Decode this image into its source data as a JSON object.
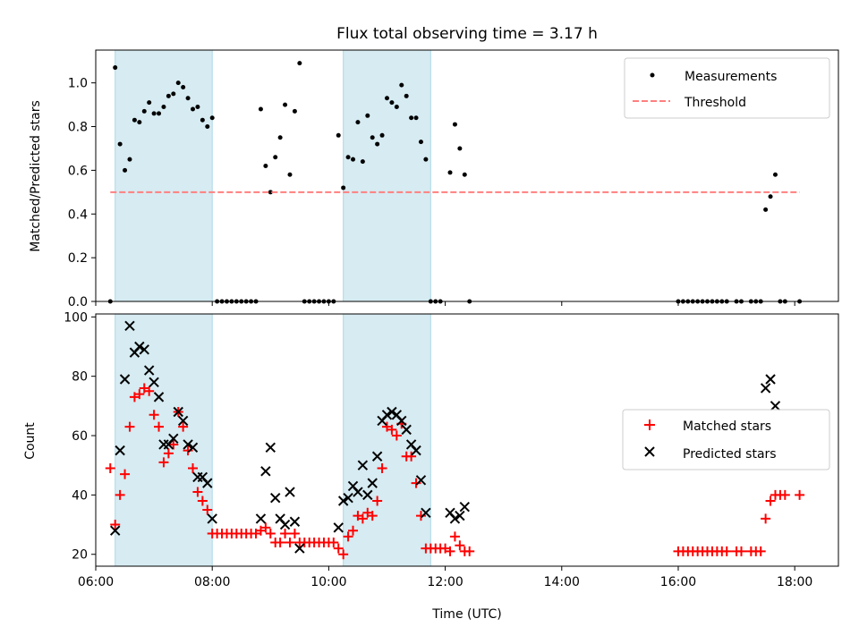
{
  "chart_data": [
    {
      "type": "scatter",
      "title": "Flux total observing time = 3.17 h",
      "xlabel": "",
      "ylabel": "Matched/Predicted stars",
      "xlim": [
        "06:00",
        "18:45"
      ],
      "ylim": [
        0,
        1.15
      ],
      "yticks": [
        "0.0",
        "0.2",
        "0.4",
        "0.6",
        "0.8",
        "1.0"
      ],
      "shaded_intervals": [
        [
          "06:20",
          "08:00"
        ],
        [
          "10:15",
          "11:45"
        ]
      ],
      "legend": "upper right",
      "series": [
        {
          "name": "Measurements",
          "marker": "dot",
          "color": "#000000",
          "points": [
            [
              "06:15",
              0.0
            ],
            [
              "06:20",
              1.07
            ],
            [
              "06:25",
              0.72
            ],
            [
              "06:30",
              0.6
            ],
            [
              "06:35",
              0.65
            ],
            [
              "06:40",
              0.83
            ],
            [
              "06:45",
              0.82
            ],
            [
              "06:50",
              0.87
            ],
            [
              "06:55",
              0.91
            ],
            [
              "07:00",
              0.86
            ],
            [
              "07:05",
              0.86
            ],
            [
              "07:10",
              0.89
            ],
            [
              "07:15",
              0.94
            ],
            [
              "07:20",
              0.95
            ],
            [
              "07:25",
              1.0
            ],
            [
              "07:30",
              0.98
            ],
            [
              "07:35",
              0.93
            ],
            [
              "07:40",
              0.88
            ],
            [
              "07:45",
              0.89
            ],
            [
              "07:50",
              0.83
            ],
            [
              "07:55",
              0.8
            ],
            [
              "08:00",
              0.84
            ],
            [
              "08:05",
              0.0
            ],
            [
              "08:10",
              0.0
            ],
            [
              "08:15",
              0.0
            ],
            [
              "08:20",
              0.0
            ],
            [
              "08:25",
              0.0
            ],
            [
              "08:30",
              0.0
            ],
            [
              "08:35",
              0.0
            ],
            [
              "08:40",
              0.0
            ],
            [
              "08:45",
              0.0
            ],
            [
              "08:50",
              0.88
            ],
            [
              "08:55",
              0.62
            ],
            [
              "09:00",
              0.5
            ],
            [
              "09:05",
              0.66
            ],
            [
              "09:10",
              0.75
            ],
            [
              "09:15",
              0.9
            ],
            [
              "09:20",
              0.58
            ],
            [
              "09:25",
              0.87
            ],
            [
              "09:30",
              1.09
            ],
            [
              "09:35",
              0.0
            ],
            [
              "09:40",
              0.0
            ],
            [
              "09:45",
              0.0
            ],
            [
              "09:50",
              0.0
            ],
            [
              "09:55",
              0.0
            ],
            [
              "10:00",
              0.0
            ],
            [
              "10:05",
              0.0
            ],
            [
              "10:10",
              0.76
            ],
            [
              "10:15",
              0.52
            ],
            [
              "10:20",
              0.66
            ],
            [
              "10:25",
              0.65
            ],
            [
              "10:30",
              0.82
            ],
            [
              "10:35",
              0.64
            ],
            [
              "10:40",
              0.85
            ],
            [
              "10:45",
              0.75
            ],
            [
              "10:50",
              0.72
            ],
            [
              "10:55",
              0.76
            ],
            [
              "11:00",
              0.93
            ],
            [
              "11:05",
              0.91
            ],
            [
              "11:10",
              0.89
            ],
            [
              "11:15",
              0.99
            ],
            [
              "11:20",
              0.94
            ],
            [
              "11:25",
              0.84
            ],
            [
              "11:30",
              0.84
            ],
            [
              "11:35",
              0.73
            ],
            [
              "11:40",
              0.65
            ],
            [
              "11:45",
              0.0
            ],
            [
              "11:50",
              0.0
            ],
            [
              "11:55",
              0.0
            ],
            [
              "12:05",
              0.59
            ],
            [
              "12:10",
              0.81
            ],
            [
              "12:15",
              0.7
            ],
            [
              "12:20",
              0.58
            ],
            [
              "12:25",
              0.0
            ],
            [
              "16:00",
              0.0
            ],
            [
              "16:05",
              0.0
            ],
            [
              "16:10",
              0.0
            ],
            [
              "16:15",
              0.0
            ],
            [
              "16:20",
              0.0
            ],
            [
              "16:25",
              0.0
            ],
            [
              "16:30",
              0.0
            ],
            [
              "16:35",
              0.0
            ],
            [
              "16:40",
              0.0
            ],
            [
              "16:45",
              0.0
            ],
            [
              "16:50",
              0.0
            ],
            [
              "17:00",
              0.0
            ],
            [
              "17:05",
              0.0
            ],
            [
              "17:15",
              0.0
            ],
            [
              "17:20",
              0.0
            ],
            [
              "17:25",
              0.0
            ],
            [
              "17:30",
              0.42
            ],
            [
              "17:35",
              0.48
            ],
            [
              "17:40",
              0.58
            ],
            [
              "17:45",
              0.0
            ],
            [
              "17:50",
              0.0
            ],
            [
              "18:05",
              0.0
            ]
          ]
        },
        {
          "name": "Threshold",
          "marker": "dashed-line",
          "color": "#ff7f7f",
          "points": [
            [
              "06:15",
              0.5
            ],
            [
              "18:05",
              0.5
            ]
          ]
        }
      ]
    },
    {
      "type": "scatter",
      "title": "",
      "xlabel": "Time (UTC)",
      "ylabel": "Count",
      "xlim": [
        "06:00",
        "18:45"
      ],
      "ylim": [
        16,
        101
      ],
      "xticks": [
        "06:00",
        "08:00",
        "10:00",
        "12:00",
        "14:00",
        "16:00",
        "18:00"
      ],
      "yticks": [
        "20",
        "40",
        "60",
        "80",
        "100"
      ],
      "shaded_intervals": [
        [
          "06:20",
          "08:00"
        ],
        [
          "10:15",
          "11:45"
        ]
      ],
      "legend": "center right",
      "series": [
        {
          "name": "Matched stars",
          "marker": "plus",
          "color": "#ff0000",
          "points": [
            [
              "06:15",
              49
            ],
            [
              "06:20",
              30
            ],
            [
              "06:25",
              40
            ],
            [
              "06:30",
              47
            ],
            [
              "06:35",
              63
            ],
            [
              "06:40",
              73
            ],
            [
              "06:45",
              74
            ],
            [
              "06:50",
              76
            ],
            [
              "06:55",
              75
            ],
            [
              "07:00",
              67
            ],
            [
              "07:05",
              63
            ],
            [
              "07:10",
              51
            ],
            [
              "07:15",
              54
            ],
            [
              "07:20",
              57
            ],
            [
              "07:25",
              68
            ],
            [
              "07:30",
              63
            ],
            [
              "07:35",
              55
            ],
            [
              "07:40",
              49
            ],
            [
              "07:45",
              41
            ],
            [
              "07:50",
              38
            ],
            [
              "07:55",
              35
            ],
            [
              "08:00",
              27
            ],
            [
              "08:05",
              27
            ],
            [
              "08:10",
              27
            ],
            [
              "08:15",
              27
            ],
            [
              "08:20",
              27
            ],
            [
              "08:25",
              27
            ],
            [
              "08:30",
              27
            ],
            [
              "08:35",
              27
            ],
            [
              "08:40",
              27
            ],
            [
              "08:45",
              27
            ],
            [
              "08:50",
              28
            ],
            [
              "08:55",
              29
            ],
            [
              "09:00",
              27
            ],
            [
              "09:05",
              24
            ],
            [
              "09:10",
              24
            ],
            [
              "09:15",
              27
            ],
            [
              "09:20",
              24
            ],
            [
              "09:25",
              27
            ],
            [
              "09:30",
              24
            ],
            [
              "09:35",
              24
            ],
            [
              "09:40",
              24
            ],
            [
              "09:45",
              24
            ],
            [
              "09:50",
              24
            ],
            [
              "09:55",
              24
            ],
            [
              "10:00",
              24
            ],
            [
              "10:05",
              24
            ],
            [
              "10:10",
              22
            ],
            [
              "10:15",
              20
            ],
            [
              "10:20",
              26
            ],
            [
              "10:25",
              28
            ],
            [
              "10:30",
              33
            ],
            [
              "10:35",
              32
            ],
            [
              "10:40",
              34
            ],
            [
              "10:45",
              33
            ],
            [
              "10:50",
              38
            ],
            [
              "10:55",
              49
            ],
            [
              "11:00",
              63
            ],
            [
              "11:05",
              62
            ],
            [
              "11:10",
              60
            ],
            [
              "11:15",
              64
            ],
            [
              "11:20",
              53
            ],
            [
              "11:25",
              53
            ],
            [
              "11:30",
              44
            ],
            [
              "11:35",
              33
            ],
            [
              "11:40",
              22
            ],
            [
              "11:45",
              22
            ],
            [
              "11:50",
              22
            ],
            [
              "11:55",
              22
            ],
            [
              "12:00",
              22
            ],
            [
              "12:05",
              21
            ],
            [
              "12:10",
              26
            ],
            [
              "12:15",
              23
            ],
            [
              "12:20",
              21
            ],
            [
              "12:25",
              21
            ],
            [
              "16:00",
              21
            ],
            [
              "16:05",
              21
            ],
            [
              "16:10",
              21
            ],
            [
              "16:15",
              21
            ],
            [
              "16:20",
              21
            ],
            [
              "16:25",
              21
            ],
            [
              "16:30",
              21
            ],
            [
              "16:35",
              21
            ],
            [
              "16:40",
              21
            ],
            [
              "16:45",
              21
            ],
            [
              "16:50",
              21
            ],
            [
              "17:00",
              21
            ],
            [
              "17:05",
              21
            ],
            [
              "17:15",
              21
            ],
            [
              "17:20",
              21
            ],
            [
              "17:25",
              21
            ],
            [
              "17:30",
              32
            ],
            [
              "17:35",
              38
            ],
            [
              "17:40",
              40
            ],
            [
              "17:45",
              40
            ],
            [
              "17:50",
              40
            ],
            [
              "18:05",
              40
            ]
          ]
        },
        {
          "name": "Predicted stars",
          "marker": "x",
          "color": "#000000",
          "points": [
            [
              "06:20",
              28
            ],
            [
              "06:25",
              55
            ],
            [
              "06:30",
              79
            ],
            [
              "06:35",
              97
            ],
            [
              "06:40",
              88
            ],
            [
              "06:45",
              90
            ],
            [
              "06:50",
              89
            ],
            [
              "06:55",
              82
            ],
            [
              "07:00",
              78
            ],
            [
              "07:05",
              73
            ],
            [
              "07:10",
              57
            ],
            [
              "07:15",
              57
            ],
            [
              "07:20",
              59
            ],
            [
              "07:25",
              68
            ],
            [
              "07:30",
              65
            ],
            [
              "07:35",
              57
            ],
            [
              "07:40",
              56
            ],
            [
              "07:45",
              46
            ],
            [
              "07:50",
              46
            ],
            [
              "07:55",
              44
            ],
            [
              "08:00",
              32
            ],
            [
              "08:50",
              32
            ],
            [
              "08:55",
              48
            ],
            [
              "09:00",
              56
            ],
            [
              "09:05",
              39
            ],
            [
              "09:10",
              32
            ],
            [
              "09:15",
              30
            ],
            [
              "09:20",
              41
            ],
            [
              "09:25",
              31
            ],
            [
              "09:30",
              22
            ],
            [
              "10:10",
              29
            ],
            [
              "10:15",
              38
            ],
            [
              "10:20",
              39
            ],
            [
              "10:25",
              43
            ],
            [
              "10:30",
              41
            ],
            [
              "10:35",
              50
            ],
            [
              "10:40",
              40
            ],
            [
              "10:45",
              44
            ],
            [
              "10:50",
              53
            ],
            [
              "10:55",
              65
            ],
            [
              "11:00",
              67
            ],
            [
              "11:05",
              68
            ],
            [
              "11:10",
              67
            ],
            [
              "11:15",
              65
            ],
            [
              "11:20",
              62
            ],
            [
              "11:25",
              57
            ],
            [
              "11:30",
              55
            ],
            [
              "11:35",
              45
            ],
            [
              "11:40",
              34
            ],
            [
              "12:05",
              34
            ],
            [
              "12:10",
              32
            ],
            [
              "12:15",
              33
            ],
            [
              "12:20",
              36
            ],
            [
              "17:30",
              76
            ],
            [
              "17:35",
              79
            ],
            [
              "17:40",
              70
            ]
          ]
        }
      ]
    }
  ]
}
